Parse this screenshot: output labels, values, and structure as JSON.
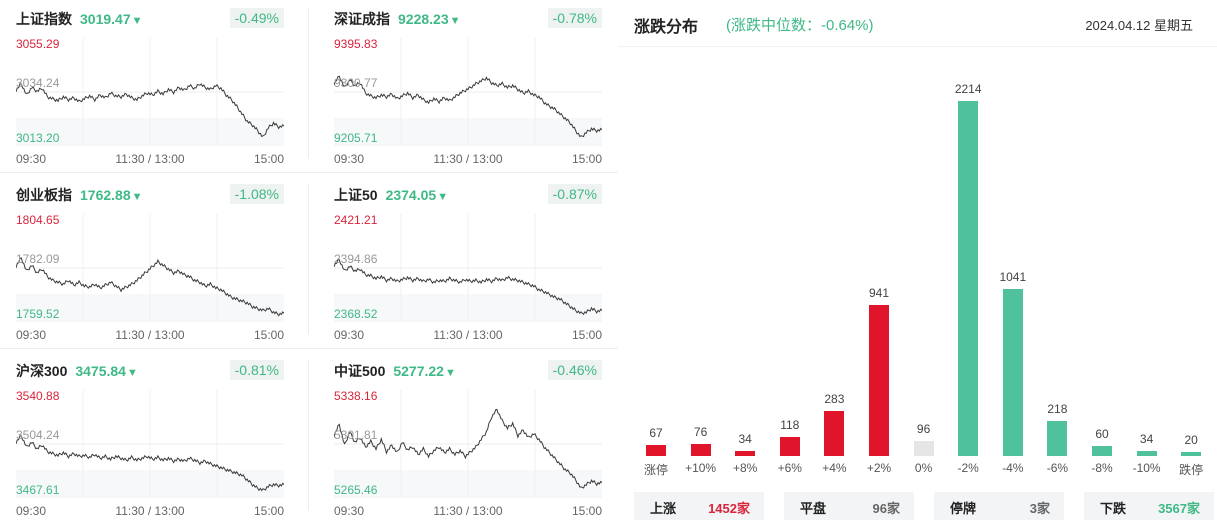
{
  "indices": [
    {
      "name": "上证指数",
      "price": "3019.47",
      "arrow": "▼",
      "pct": "-0.49%",
      "high": "3055.29",
      "mid": "3034.24",
      "low": "3013.20",
      "open_time": "09:30",
      "mid_time": "11:30 / 13:00",
      "close_time": "15:00",
      "series": [
        0.55,
        0.62,
        0.5,
        0.58,
        0.54,
        0.57,
        0.48,
        0.46,
        0.44,
        0.48,
        0.45,
        0.47,
        0.43,
        0.46,
        0.49,
        0.45,
        0.5,
        0.47,
        0.52,
        0.49,
        0.48,
        0.51,
        0.47,
        0.45,
        0.49,
        0.52,
        0.5,
        0.54,
        0.51,
        0.56,
        0.53,
        0.58,
        0.55,
        0.6,
        0.57,
        0.62,
        0.58,
        0.56,
        0.6,
        0.57,
        0.5,
        0.45,
        0.38,
        0.3,
        0.22,
        0.18,
        0.12,
        0.05,
        0.15,
        0.2,
        0.16,
        0.17
      ]
    },
    {
      "name": "深证成指",
      "price": "9228.23",
      "arrow": "▼",
      "pct": "-0.78%",
      "high": "9395.83",
      "mid": "9300.77",
      "low": "9205.71",
      "open_time": "09:30",
      "mid_time": "11:30 / 13:00",
      "close_time": "15:00",
      "series": [
        0.62,
        0.7,
        0.58,
        0.66,
        0.6,
        0.63,
        0.52,
        0.49,
        0.47,
        0.5,
        0.48,
        0.51,
        0.46,
        0.49,
        0.52,
        0.47,
        0.5,
        0.45,
        0.42,
        0.46,
        0.43,
        0.47,
        0.44,
        0.48,
        0.52,
        0.55,
        0.58,
        0.62,
        0.65,
        0.68,
        0.63,
        0.6,
        0.62,
        0.58,
        0.6,
        0.56,
        0.52,
        0.54,
        0.5,
        0.48,
        0.42,
        0.38,
        0.35,
        0.3,
        0.25,
        0.2,
        0.12,
        0.05,
        0.1,
        0.14,
        0.12,
        0.13
      ]
    },
    {
      "name": "创业板指",
      "price": "1762.88",
      "arrow": "▼",
      "pct": "-1.08%",
      "high": "1804.65",
      "mid": "1782.09",
      "low": "1759.52",
      "open_time": "09:30",
      "mid_time": "11:30 / 13:00",
      "close_time": "15:00",
      "series": [
        0.55,
        0.64,
        0.5,
        0.56,
        0.48,
        0.52,
        0.44,
        0.4,
        0.38,
        0.36,
        0.4,
        0.35,
        0.38,
        0.34,
        0.33,
        0.36,
        0.32,
        0.35,
        0.38,
        0.34,
        0.3,
        0.33,
        0.36,
        0.4,
        0.45,
        0.5,
        0.55,
        0.6,
        0.56,
        0.52,
        0.48,
        0.5,
        0.46,
        0.44,
        0.4,
        0.38,
        0.34,
        0.36,
        0.32,
        0.3,
        0.26,
        0.22,
        0.2,
        0.18,
        0.16,
        0.12,
        0.1,
        0.08,
        0.1,
        0.06,
        0.04,
        0.05
      ]
    },
    {
      "name": "上证50",
      "price": "2374.05",
      "arrow": "▼",
      "pct": "-0.87%",
      "high": "2421.21",
      "mid": "2394.86",
      "low": "2368.52",
      "open_time": "09:30",
      "mid_time": "11:30 / 13:00",
      "close_time": "15:00",
      "series": [
        0.56,
        0.62,
        0.5,
        0.55,
        0.5,
        0.52,
        0.46,
        0.45,
        0.42,
        0.44,
        0.4,
        0.42,
        0.39,
        0.41,
        0.43,
        0.4,
        0.42,
        0.39,
        0.41,
        0.38,
        0.4,
        0.39,
        0.42,
        0.4,
        0.38,
        0.41,
        0.39,
        0.4,
        0.38,
        0.41,
        0.39,
        0.42,
        0.4,
        0.43,
        0.41,
        0.4,
        0.38,
        0.36,
        0.34,
        0.3,
        0.28,
        0.25,
        0.22,
        0.2,
        0.16,
        0.12,
        0.08,
        0.05,
        0.06,
        0.1,
        0.07,
        0.08
      ]
    },
    {
      "name": "沪深300",
      "price": "3475.84",
      "arrow": "▼",
      "pct": "-0.81%",
      "high": "3540.88",
      "mid": "3504.24",
      "low": "3467.61",
      "open_time": "09:30",
      "mid_time": "11:30 / 13:00",
      "close_time": "15:00",
      "series": [
        0.55,
        0.62,
        0.5,
        0.55,
        0.48,
        0.52,
        0.45,
        0.43,
        0.41,
        0.44,
        0.4,
        0.43,
        0.4,
        0.41,
        0.39,
        0.42,
        0.38,
        0.4,
        0.37,
        0.4,
        0.38,
        0.36,
        0.39,
        0.36,
        0.38,
        0.4,
        0.37,
        0.39,
        0.36,
        0.38,
        0.35,
        0.37,
        0.35,
        0.38,
        0.36,
        0.33,
        0.35,
        0.32,
        0.3,
        0.28,
        0.26,
        0.24,
        0.22,
        0.2,
        0.15,
        0.1,
        0.06,
        0.04,
        0.08,
        0.1,
        0.09,
        0.1
      ]
    },
    {
      "name": "中证500",
      "price": "5277.22",
      "arrow": "▼",
      "pct": "-0.46%",
      "high": "5338.16",
      "mid": "5301.81",
      "low": "5265.46",
      "open_time": "09:30",
      "mid_time": "11:30 / 13:00",
      "close_time": "15:00",
      "series": [
        0.62,
        0.74,
        0.52,
        0.66,
        0.55,
        0.6,
        0.5,
        0.56,
        0.48,
        0.58,
        0.45,
        0.52,
        0.44,
        0.55,
        0.47,
        0.5,
        0.42,
        0.48,
        0.4,
        0.46,
        0.5,
        0.44,
        0.48,
        0.42,
        0.46,
        0.4,
        0.45,
        0.5,
        0.58,
        0.66,
        0.82,
        0.9,
        0.78,
        0.7,
        0.75,
        0.62,
        0.68,
        0.6,
        0.64,
        0.58,
        0.5,
        0.44,
        0.38,
        0.32,
        0.26,
        0.22,
        0.15,
        0.06,
        0.1,
        0.14,
        0.11,
        0.12
      ]
    }
  ],
  "distribution": {
    "title": "涨跌分布",
    "median_label": "(涨跌中位数：-0.64%)",
    "date": "2024.04.12 星期五",
    "colors": {
      "up": "#e0142b",
      "flat": "#e6e6e6",
      "down": "#4fc19d"
    },
    "bars": [
      {
        "cat": "涨停",
        "value": 67,
        "label": "67",
        "dir": "up"
      },
      {
        "cat": "+10%",
        "value": 76,
        "label": "76",
        "dir": "up"
      },
      {
        "cat": "+8%",
        "value": 34,
        "label": "34",
        "dir": "up"
      },
      {
        "cat": "+6%",
        "value": 118,
        "label": "118",
        "dir": "up"
      },
      {
        "cat": "+4%",
        "value": 283,
        "label": "283",
        "dir": "up"
      },
      {
        "cat": "+2%",
        "value": 941,
        "label": "941",
        "dir": "up"
      },
      {
        "cat": "0%",
        "value": 96,
        "label": "96",
        "dir": "flat"
      },
      {
        "cat": "-2%",
        "value": 2214,
        "label": "2214",
        "dir": "down"
      },
      {
        "cat": "-4%",
        "value": 1041,
        "label": "1041",
        "dir": "down"
      },
      {
        "cat": "-6%",
        "value": 218,
        "label": "218",
        "dir": "down"
      },
      {
        "cat": "-8%",
        "value": 60,
        "label": "60",
        "dir": "down"
      },
      {
        "cat": "-10%",
        "value": 34,
        "label": "34",
        "dir": "down"
      },
      {
        "cat": "跌停",
        "value": 20,
        "label": "20",
        "dir": "down"
      }
    ],
    "summary": [
      {
        "label": "上涨",
        "value": "1452家",
        "color": "#d9243c"
      },
      {
        "label": "平盘",
        "value": "96家",
        "color": "#666666"
      },
      {
        "label": "停牌",
        "value": "3家",
        "color": "#666666"
      },
      {
        "label": "下跌",
        "value": "3567家",
        "color": "#3fb986"
      }
    ]
  }
}
